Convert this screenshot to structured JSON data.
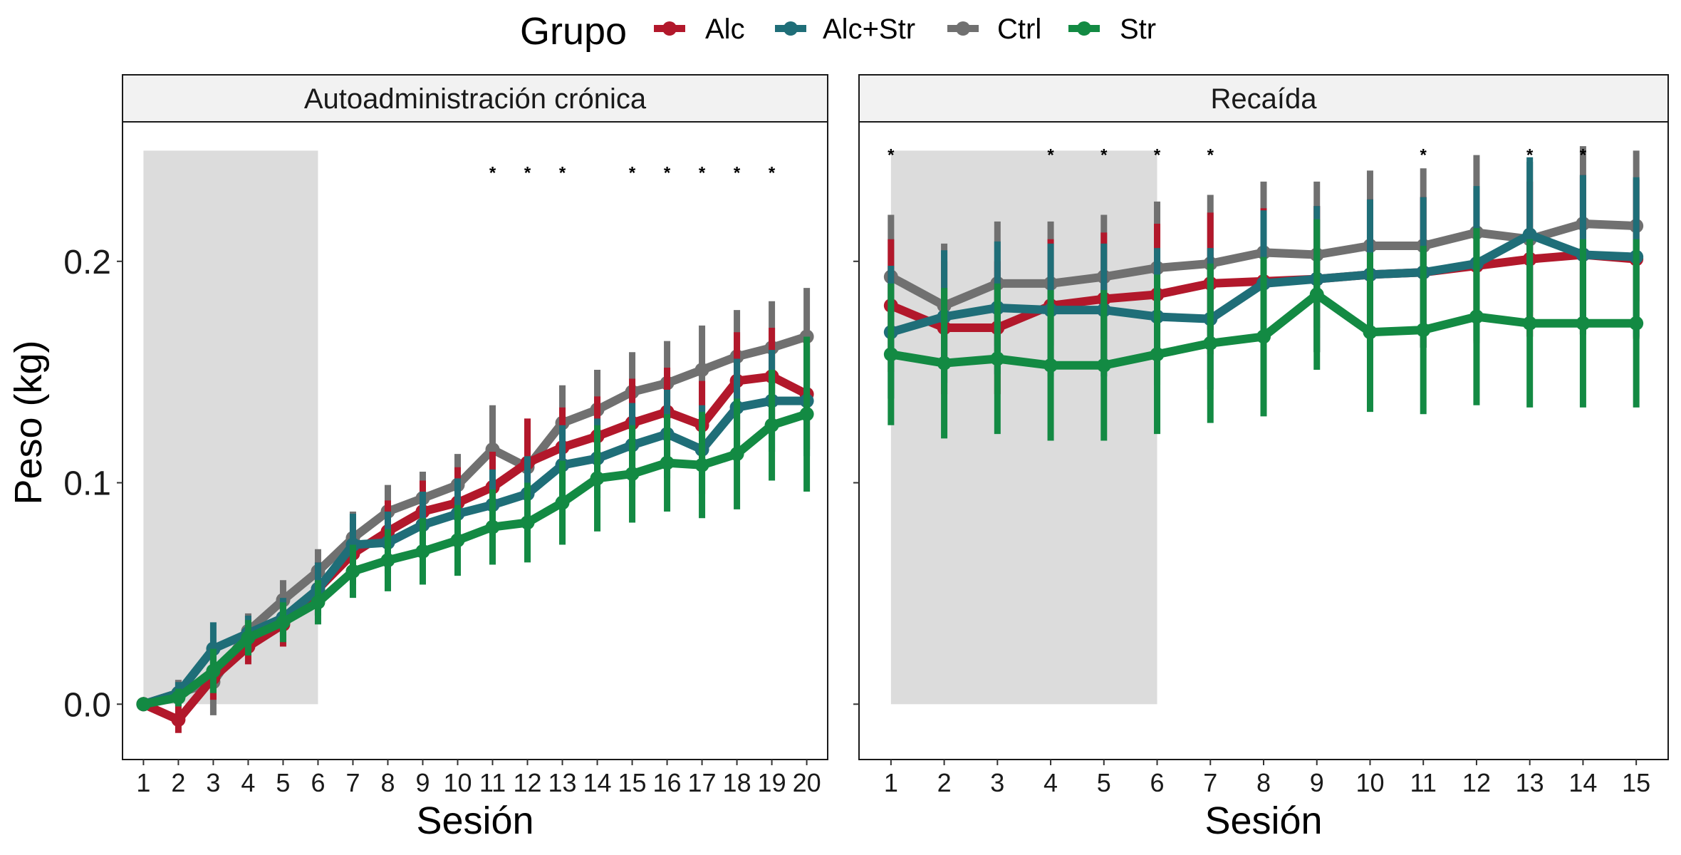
{
  "legend": {
    "title": "Grupo",
    "groups": [
      {
        "key": "Alc",
        "label": "Alc",
        "color": "#B2182B"
      },
      {
        "key": "AlcStr",
        "label": "Alc+Str",
        "color": "#1F6E78"
      },
      {
        "key": "Ctrl",
        "label": "Ctrl",
        "color": "#707070"
      },
      {
        "key": "Str",
        "label": "Str",
        "color": "#138A43"
      }
    ]
  },
  "axes": {
    "y_title": "Peso (kg)",
    "x_title": "Sesión"
  },
  "chart_data": [
    {
      "type": "line",
      "panel_title": "Autoadministración crónica",
      "xlabel": "Sesión",
      "ylabel": "Peso (kg)",
      "x": [
        1,
        2,
        3,
        4,
        5,
        6,
        7,
        8,
        9,
        10,
        11,
        12,
        13,
        14,
        15,
        16,
        17,
        18,
        19,
        20
      ],
      "ylim": [
        -0.025,
        0.263
      ],
      "yticks": [
        0.0,
        0.1,
        0.2
      ],
      "ytick_labels": [
        "0.0",
        "0.1",
        "0.2"
      ],
      "shaded_sessions": [
        1,
        6
      ],
      "shaded_y_range": [
        0.0,
        0.25
      ],
      "significance": {
        "sessions": [
          11,
          12,
          13,
          15,
          16,
          17,
          18,
          19
        ],
        "label": "*",
        "y": 0.242
      },
      "series": [
        {
          "name": "Alc",
          "values": [
            0.0,
            -0.007,
            0.012,
            0.026,
            0.036,
            0.052,
            0.068,
            0.078,
            0.087,
            0.091,
            0.098,
            0.109,
            0.116,
            0.121,
            0.127,
            0.132,
            0.126,
            0.146,
            0.148,
            0.14
          ],
          "errors": [
            0.0,
            0.006,
            0.01,
            0.008,
            0.01,
            0.012,
            0.014,
            0.014,
            0.014,
            0.016,
            0.016,
            0.02,
            0.018,
            0.018,
            0.02,
            0.02,
            0.02,
            0.022,
            0.022,
            0.025
          ]
        },
        {
          "name": "Alc+Str",
          "values": [
            0.0,
            0.005,
            0.025,
            0.032,
            0.039,
            0.052,
            0.072,
            0.073,
            0.081,
            0.086,
            0.09,
            0.095,
            0.108,
            0.111,
            0.117,
            0.122,
            0.115,
            0.134,
            0.137,
            0.137
          ],
          "errors": [
            0.0,
            0.005,
            0.012,
            0.008,
            0.009,
            0.012,
            0.014,
            0.014,
            0.015,
            0.016,
            0.016,
            0.017,
            0.018,
            0.018,
            0.019,
            0.02,
            0.02,
            0.022,
            0.023,
            0.025
          ]
        },
        {
          "name": "Ctrl",
          "values": [
            0.0,
            0.005,
            0.01,
            0.033,
            0.047,
            0.06,
            0.075,
            0.087,
            0.093,
            0.099,
            0.115,
            0.107,
            0.127,
            0.133,
            0.141,
            0.145,
            0.151,
            0.157,
            0.161,
            0.166
          ],
          "errors": [
            0.0,
            0.006,
            0.015,
            0.008,
            0.009,
            0.01,
            0.012,
            0.012,
            0.012,
            0.014,
            0.02,
            0.016,
            0.017,
            0.018,
            0.018,
            0.019,
            0.02,
            0.021,
            0.021,
            0.022
          ]
        },
        {
          "name": "Str",
          "values": [
            0.0,
            0.003,
            0.015,
            0.03,
            0.037,
            0.046,
            0.06,
            0.065,
            0.069,
            0.074,
            0.08,
            0.082,
            0.091,
            0.102,
            0.104,
            0.109,
            0.108,
            0.113,
            0.126,
            0.131
          ],
          "errors": [
            0.0,
            0.004,
            0.01,
            0.008,
            0.009,
            0.01,
            0.012,
            0.014,
            0.015,
            0.016,
            0.017,
            0.018,
            0.019,
            0.024,
            0.022,
            0.022,
            0.024,
            0.025,
            0.025,
            0.035
          ]
        }
      ]
    },
    {
      "type": "line",
      "panel_title": "Recaída",
      "xlabel": "Sesión",
      "ylabel": "",
      "x": [
        1,
        2,
        3,
        4,
        5,
        6,
        7,
        8,
        9,
        10,
        11,
        12,
        13,
        14,
        15
      ],
      "ylim": [
        -0.025,
        0.263
      ],
      "yticks": [
        0.0,
        0.1,
        0.2
      ],
      "ytick_labels": [
        "",
        "",
        ""
      ],
      "shaded_sessions": [
        1,
        6
      ],
      "shaded_y_range": [
        0.0,
        0.25
      ],
      "significance": {
        "sessions": [
          1,
          4,
          5,
          6,
          7,
          11,
          13,
          14
        ],
        "label": "*",
        "y": 0.25
      },
      "series": [
        {
          "name": "Alc",
          "values": [
            0.18,
            0.17,
            0.17,
            0.18,
            0.183,
            0.185,
            0.19,
            0.191,
            0.192,
            0.194,
            0.195,
            0.198,
            0.201,
            0.203,
            0.201
          ],
          "errors": [
            0.03,
            0.03,
            0.03,
            0.03,
            0.03,
            0.032,
            0.032,
            0.033,
            0.033,
            0.034,
            0.034,
            0.035,
            0.035,
            0.036,
            0.036
          ]
        },
        {
          "name": "Alc+Str",
          "values": [
            0.168,
            0.175,
            0.179,
            0.178,
            0.178,
            0.175,
            0.174,
            0.19,
            0.192,
            0.194,
            0.195,
            0.199,
            0.212,
            0.203,
            0.202
          ],
          "errors": [
            0.03,
            0.03,
            0.03,
            0.03,
            0.03,
            0.031,
            0.032,
            0.033,
            0.033,
            0.034,
            0.034,
            0.035,
            0.035,
            0.036,
            0.036
          ]
        },
        {
          "name": "Ctrl",
          "values": [
            0.193,
            0.18,
            0.19,
            0.19,
            0.193,
            0.197,
            0.199,
            0.204,
            0.203,
            0.207,
            0.207,
            0.213,
            0.21,
            0.217,
            0.216
          ],
          "errors": [
            0.028,
            0.028,
            0.028,
            0.028,
            0.028,
            0.03,
            0.031,
            0.032,
            0.033,
            0.034,
            0.035,
            0.035,
            0.035,
            0.035,
            0.034
          ]
        },
        {
          "name": "Str",
          "values": [
            0.158,
            0.154,
            0.156,
            0.153,
            0.153,
            0.158,
            0.163,
            0.166,
            0.185,
            0.168,
            0.169,
            0.175,
            0.172,
            0.172,
            0.172
          ],
          "errors": [
            0.032,
            0.034,
            0.034,
            0.034,
            0.034,
            0.036,
            0.036,
            0.036,
            0.034,
            0.036,
            0.038,
            0.04,
            0.038,
            0.038,
            0.038
          ]
        }
      ]
    }
  ]
}
